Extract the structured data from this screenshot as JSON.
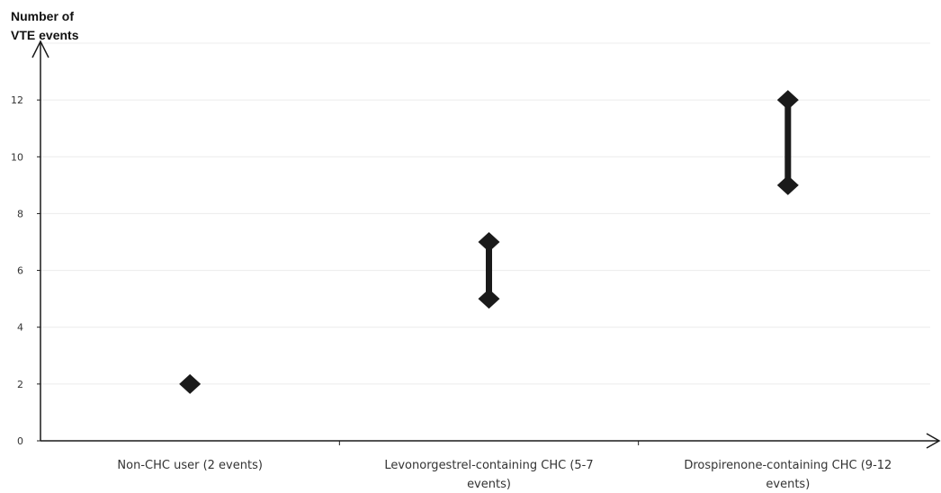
{
  "chart_data": {
    "type": "range",
    "ylabel_lines": [
      "Number of",
      "VTE events"
    ],
    "xlabel": "",
    "ylim": [
      0,
      14
    ],
    "yticks": [
      0,
      2,
      4,
      6,
      8,
      10,
      12
    ],
    "grid": true,
    "categories": [
      {
        "label_lines": [
          "Non-CHC user (2 events)"
        ],
        "low": 2,
        "high": 2
      },
      {
        "label_lines": [
          "Levonorgestrel-containing CHC (5-7",
          "events)"
        ],
        "low": 5,
        "high": 7
      },
      {
        "label_lines": [
          "Drospirenone-containing CHC (9-12",
          "events)"
        ],
        "low": 9,
        "high": 12
      }
    ],
    "colors": {
      "marker": "#1a1a1a",
      "axis": "#1a1a1a",
      "grid": "#ececec",
      "tick_text": "#333333"
    }
  }
}
